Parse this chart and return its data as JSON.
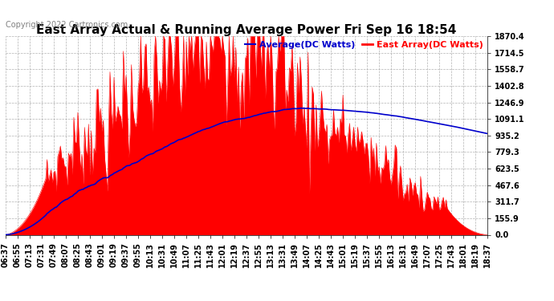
{
  "title": "East Array Actual & Running Average Power Fri Sep 16 18:54",
  "copyright": "Copyright 2022 Cartronics.com",
  "legend_average": "Average(DC Watts)",
  "legend_east": "East Array(DC Watts)",
  "yticks": [
    0.0,
    155.9,
    311.7,
    467.6,
    623.5,
    779.3,
    935.2,
    1091.1,
    1246.9,
    1402.8,
    1558.7,
    1714.5,
    1870.4
  ],
  "ymax": 1870.4,
  "ymin": 0.0,
  "background_color": "#ffffff",
  "plot_bg_color": "#ffffff",
  "grid_color": "#aaaaaa",
  "fill_color": "#ff0000",
  "avg_line_color": "#0000cc",
  "title_fontsize": 11,
  "tick_fontsize": 7,
  "legend_fontsize": 8,
  "copyright_fontsize": 7,
  "xtick_labels": [
    "06:37",
    "06:55",
    "07:13",
    "07:31",
    "07:49",
    "08:07",
    "08:25",
    "08:43",
    "09:01",
    "09:19",
    "09:37",
    "09:55",
    "10:13",
    "10:31",
    "10:49",
    "11:07",
    "11:25",
    "11:43",
    "12:01",
    "12:19",
    "12:37",
    "12:55",
    "13:13",
    "13:31",
    "13:49",
    "14:07",
    "14:25",
    "14:43",
    "15:01",
    "15:19",
    "15:37",
    "15:55",
    "16:13",
    "16:31",
    "16:49",
    "17:07",
    "17:25",
    "17:43",
    "18:01",
    "18:19",
    "18:37"
  ]
}
